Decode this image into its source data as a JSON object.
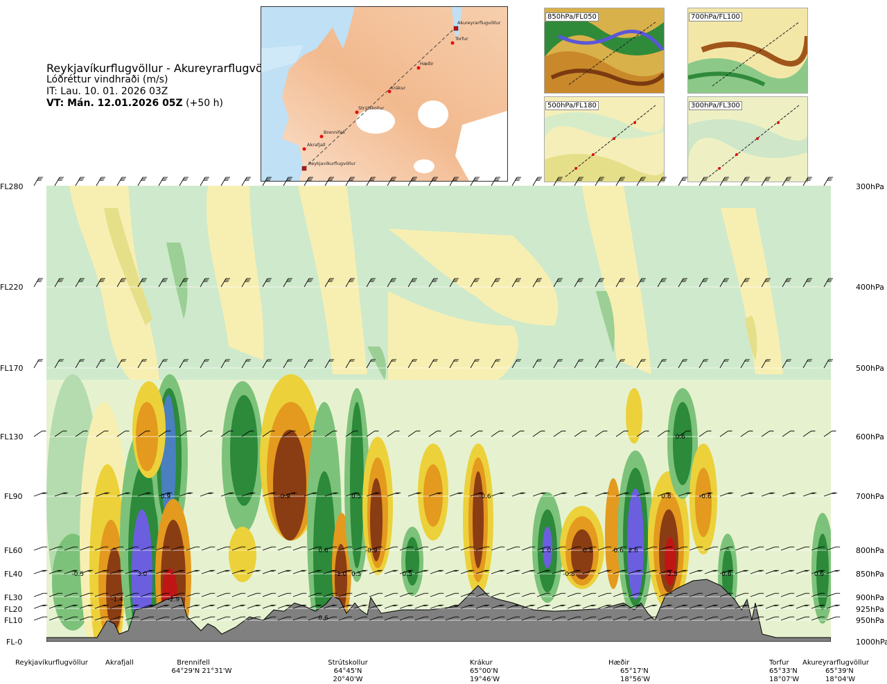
{
  "header": {
    "title": "Reykjavíkurflugvöllur - Akureyrarflugvöllur",
    "variable": "Lóðréttur vindhraði (m/s)",
    "it": "IT: Lau. 10. 01. 2026 03Z",
    "vt_bold": "VT: Mán. 12.01.2026 05Z",
    "vt_suffix": "(+50 h)"
  },
  "route_map": {
    "points": [
      "Akureyrarflugvöllur",
      "Torfur",
      "Hæðir",
      "Krákur",
      "Strútskollur",
      "Brennifell",
      "Akrafjall",
      "Reykjavíkurflugvöllur"
    ]
  },
  "thumbnails": [
    {
      "label": "850hPa/FL050"
    },
    {
      "label": "700hPa/FL100"
    },
    {
      "label": "500hPa/FL180"
    },
    {
      "label": "300hPa/FL300"
    }
  ],
  "levels_left": [
    "FL280",
    "FL220",
    "FL170",
    "FL130",
    "FL90",
    "FL60",
    "FL40",
    "FL30",
    "FL20",
    "FL10",
    "FL-0"
  ],
  "levels_right": [
    "300hPa",
    "400hPa",
    "500hPa",
    "600hPa",
    "700hPa",
    "800hPa",
    "850hPa",
    "900hPa",
    "925hPa",
    "950hPa",
    "1000hPa"
  ],
  "stations": [
    {
      "name": "Reykjavíkurflugvöllur",
      "coord": ""
    },
    {
      "name": "Akrafjall",
      "coord": ""
    },
    {
      "name": "Brennifell",
      "coord": "64°29'N 21°31'W"
    },
    {
      "name": "Strútskollur",
      "coord": "64°45'N 20°40'W"
    },
    {
      "name": "Krákur",
      "coord": "65°00'N 19°46'W"
    },
    {
      "name": "Hæðir",
      "coord": "65°17'N 18°56'W"
    },
    {
      "name": "Torfur",
      "coord": "65°33'N 18°07'W"
    },
    {
      "name": "Akureyrarflugvöllur",
      "coord": "65°39'N 18°04'W"
    }
  ],
  "chart_data": {
    "type": "heatmap",
    "variable": "Lóðréttur vindhraði (m/s)",
    "y_levels_hPa": [
      300,
      400,
      500,
      600,
      700,
      800,
      850,
      900,
      925,
      950,
      1000
    ],
    "contour_labels": [
      {
        "value": "-0.5",
        "station_frac": 0.04,
        "level_hPa": 850
      },
      {
        "value": "-1.4",
        "station_frac": 0.09,
        "level_hPa": 905
      },
      {
        "value": "3.0",
        "station_frac": 0.122,
        "level_hPa": 850
      },
      {
        "value": "0.9",
        "station_frac": 0.152,
        "level_hPa": 700
      },
      {
        "value": "-2.9",
        "station_frac": 0.162,
        "level_hPa": 905
      },
      {
        "value": "-0.9",
        "station_frac": 0.303,
        "level_hPa": 700
      },
      {
        "value": "0.6",
        "station_frac": 0.353,
        "level_hPa": 945
      },
      {
        "value": "0.6",
        "station_frac": 0.353,
        "level_hPa": 800
      },
      {
        "value": "-1.0",
        "station_frac": 0.375,
        "level_hPa": 850
      },
      {
        "value": "0.5",
        "station_frac": 0.395,
        "level_hPa": 850
      },
      {
        "value": "0.5",
        "station_frac": 0.395,
        "level_hPa": 700
      },
      {
        "value": "-0.9",
        "station_frac": 0.414,
        "level_hPa": 800
      },
      {
        "value": "0.5",
        "station_frac": 0.46,
        "level_hPa": 850
      },
      {
        "value": "-0.6",
        "station_frac": 0.559,
        "level_hPa": 700
      },
      {
        "value": "1.0",
        "station_frac": 0.637,
        "level_hPa": 800
      },
      {
        "value": "-0.8",
        "station_frac": 0.666,
        "level_hPa": 850
      },
      {
        "value": "-0.8",
        "station_frac": 0.689,
        "level_hPa": 800
      },
      {
        "value": "-0.6",
        "station_frac": 0.728,
        "level_hPa": 800
      },
      {
        "value": "2.6",
        "station_frac": 0.748,
        "level_hPa": 800
      },
      {
        "value": "0.8",
        "station_frac": 0.79,
        "level_hPa": 700
      },
      {
        "value": "-2.5",
        "station_frac": 0.797,
        "level_hPa": 850
      },
      {
        "value": "0.6",
        "station_frac": 0.808,
        "level_hPa": 600
      },
      {
        "value": "-0.6",
        "station_frac": 0.84,
        "level_hPa": 700
      },
      {
        "value": "0.6",
        "station_frac": 0.867,
        "level_hPa": 850
      },
      {
        "value": "0.6",
        "station_frac": 0.985,
        "level_hPa": 850
      }
    ],
    "grid": true,
    "colors": {
      "strong_up": "#6b5fe0",
      "up_mid": "#2c8a3a",
      "up_light": "#7dc27a",
      "up_faint": "#cfe9cc",
      "down_faint": "#f7efb2",
      "down_light": "#ecd13a",
      "down_mid": "#e39a1e",
      "down_strong": "#8a3c12",
      "down_extreme": "#c01515",
      "terrain": "#808080"
    }
  }
}
